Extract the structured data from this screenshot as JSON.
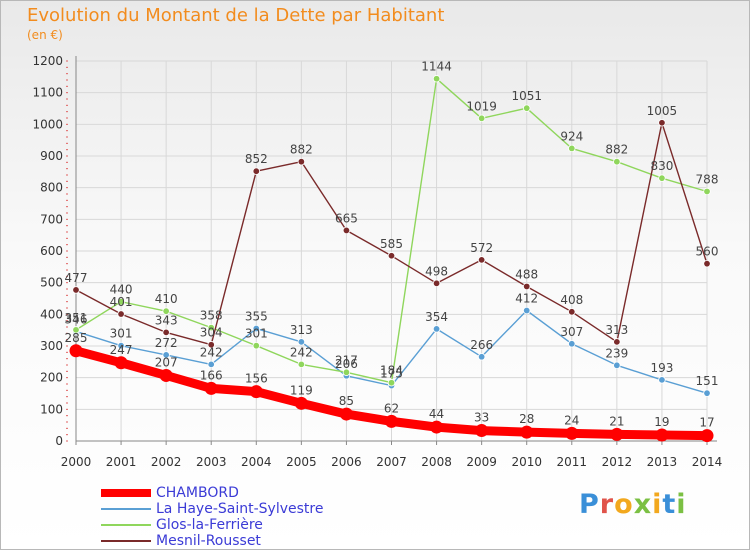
{
  "page": {
    "title": "Evolution du Montant de la Dette par Habitant",
    "subtitle": "(en €)",
    "logo": "Proxiti"
  },
  "colors": {
    "title": "#f28c1e",
    "legend_text": "#3b3bd6"
  },
  "chart_data": {
    "type": "line",
    "x": [
      "2000",
      "2001",
      "2002",
      "2003",
      "2004",
      "2005",
      "2006",
      "2007",
      "2008",
      "2009",
      "2010",
      "2011",
      "2012",
      "2013",
      "2014"
    ],
    "y_ticks": [
      "0",
      "100",
      "200",
      "300",
      "400",
      "500",
      "600",
      "700",
      "800",
      "900",
      "1000",
      "1100",
      "1200"
    ],
    "ylim": [
      0,
      1200
    ],
    "grid": true,
    "legend_position": "bottom-left",
    "series": [
      {
        "name": "CHAMBORD",
        "color": "#ff0000",
        "emphasis": true,
        "values": [
          285,
          247,
          207,
          166,
          156,
          119,
          85,
          62,
          44,
          33,
          28,
          24,
          21,
          19,
          17
        ]
      },
      {
        "name": "La Haye-Saint-Sylvestre",
        "color": "#5a9fd4",
        "emphasis": false,
        "values": [
          346,
          301,
          272,
          242,
          355,
          313,
          206,
          175,
          354,
          266,
          412,
          307,
          239,
          193,
          151
        ]
      },
      {
        "name": "Glos-la-Ferrière",
        "color": "#8fd65c",
        "emphasis": false,
        "values": [
          351,
          440,
          410,
          358,
          301,
          242,
          217,
          184,
          1144,
          1019,
          1051,
          924,
          882,
          830,
          788
        ]
      },
      {
        "name": "Mesnil-Rousset",
        "color": "#7a2a2a",
        "emphasis": false,
        "values": [
          477,
          401,
          343,
          304,
          852,
          882,
          665,
          585,
          498,
          572,
          488,
          408,
          313,
          1005,
          560
        ]
      }
    ]
  }
}
